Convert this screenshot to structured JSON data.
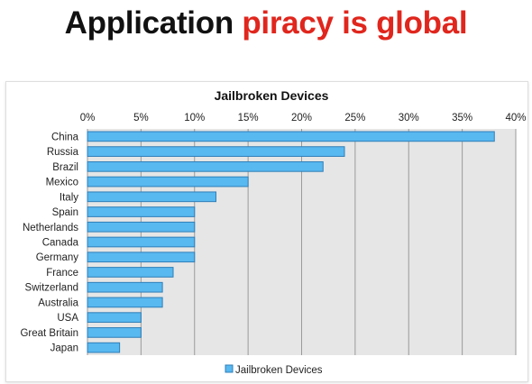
{
  "slide": {
    "title_part1": "Application",
    "title_part2": "piracy is global"
  },
  "colors": {
    "title_dark": "#111111",
    "title_accent": "#e0261d",
    "bar_fill": "#58b8f0",
    "bar_stroke": "#2f7fb8",
    "plot_background": "#e6e6e6",
    "gridline": "#9a9a9a"
  },
  "chart_data": {
    "type": "bar",
    "orientation": "horizontal",
    "title": "Jailbroken Devices",
    "xlabel": "",
    "ylabel": "",
    "xlim": [
      0,
      40
    ],
    "x_ticks": [
      "0%",
      "5%",
      "10%",
      "15%",
      "20%",
      "25%",
      "30%",
      "35%",
      "40%"
    ],
    "x_axis_position": "top",
    "grid": true,
    "legend_position": "bottom",
    "categories": [
      "China",
      "Russia",
      "Brazil",
      "Mexico",
      "Italy",
      "Spain",
      "Netherlands",
      "Canada",
      "Germany",
      "France",
      "Switzerland",
      "Australia",
      "USA",
      "Great Britain",
      "Japan"
    ],
    "series": [
      {
        "name": "Jailbroken Devices",
        "unit": "%",
        "values": [
          38,
          24,
          22,
          15,
          12,
          10,
          10,
          10,
          10,
          8,
          7,
          7,
          5,
          5,
          3
        ]
      }
    ]
  }
}
